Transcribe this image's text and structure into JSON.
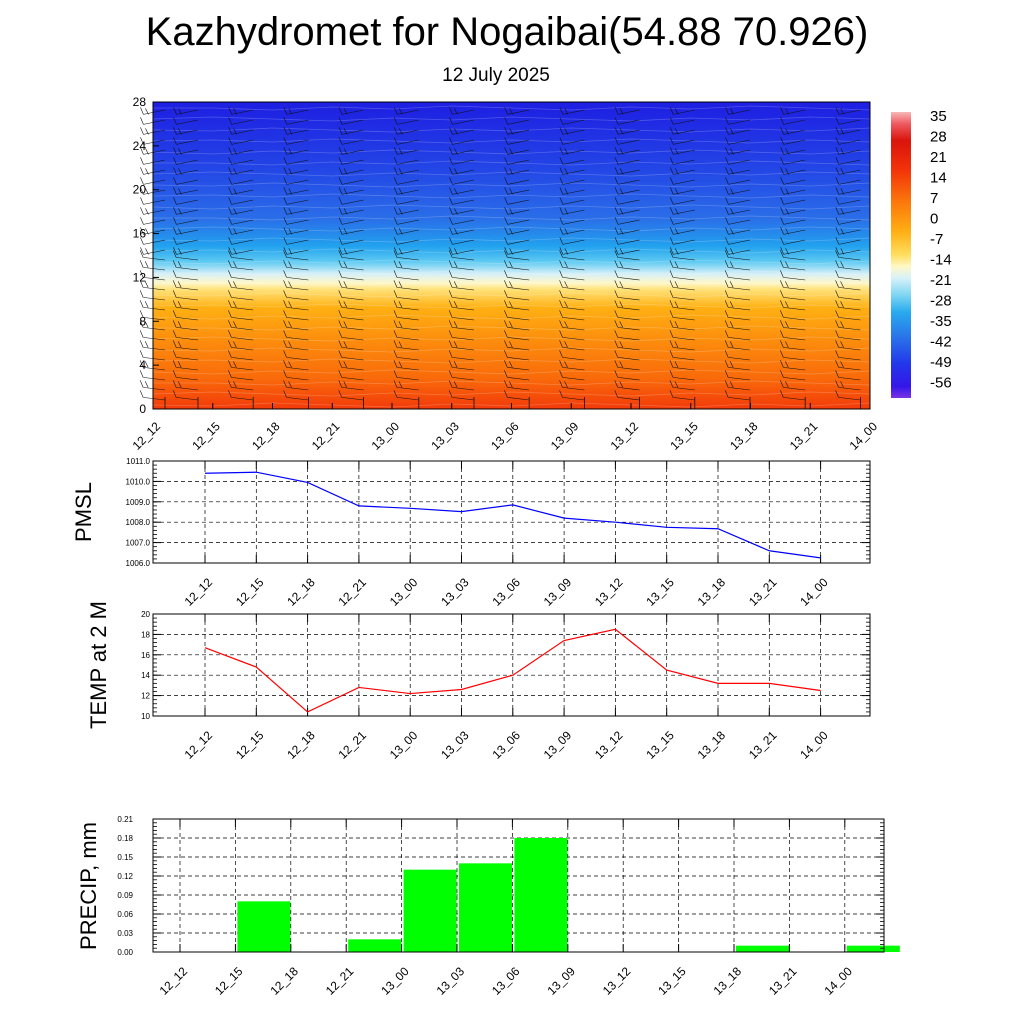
{
  "title": "Kazhydromet for Nogaibai(54.88 70.926)",
  "subtitle": "12 July 2025",
  "time_labels": [
    "12_12",
    "12_15",
    "12_18",
    "12_21",
    "13_00",
    "13_03",
    "13_06",
    "13_09",
    "13_12",
    "13_15",
    "13_18",
    "13_21",
    "14_00"
  ],
  "colors": {
    "pmsl_line": "#0000ff",
    "temp_line": "#ff0000",
    "precip_bar": "#00ff00",
    "grid": "#000000"
  },
  "chart_data": [
    {
      "type": "heatmap",
      "title": "",
      "xlabel": "",
      "ylabel": "",
      "x": [
        "12_12",
        "12_15",
        "12_18",
        "12_21",
        "13_00",
        "13_03",
        "13_06",
        "13_09",
        "13_12",
        "13_15",
        "13_18",
        "13_21",
        "14_00"
      ],
      "ylim": [
        0,
        28
      ],
      "yticks": [
        "0",
        "4",
        "8",
        "12",
        "16",
        "20",
        "24",
        "28"
      ],
      "colorbar_labels": [
        "35",
        "28",
        "21",
        "14",
        "7",
        "0",
        "-7",
        "-14",
        "-21",
        "-28",
        "-35",
        "-42",
        "-49",
        "-56"
      ],
      "colorbar_range": [
        -60,
        38
      ],
      "wind_barbs": true
    },
    {
      "type": "line",
      "ylabel": "PMSL",
      "x": [
        "12_12",
        "12_15",
        "12_18",
        "12_21",
        "13_00",
        "13_03",
        "13_06",
        "13_09",
        "13_12",
        "13_15",
        "13_18",
        "13_21",
        "14_00"
      ],
      "yticks": [
        "1006.0",
        "1007.0",
        "1008.0",
        "1009.0",
        "1010.0",
        "1011.0"
      ],
      "ylim": [
        1006.0,
        1011.0
      ],
      "series": [
        {
          "values": [
            1010.4,
            1010.45,
            1009.95,
            1008.8,
            1008.68,
            1008.52,
            1008.85,
            1008.2,
            1008.0,
            1007.75,
            1007.68,
            1006.6,
            1006.25
          ]
        }
      ]
    },
    {
      "type": "line",
      "ylabel": "TEMP at 2 M",
      "x": [
        "12_12",
        "12_15",
        "12_18",
        "12_21",
        "13_00",
        "13_03",
        "13_06",
        "13_09",
        "13_12",
        "13_15",
        "13_18",
        "13_21",
        "14_00"
      ],
      "yticks": [
        "10",
        "12",
        "14",
        "16",
        "18",
        "20"
      ],
      "ylim": [
        10,
        20
      ],
      "series": [
        {
          "values": [
            16.7,
            14.8,
            10.4,
            12.8,
            12.2,
            12.6,
            14.0,
            17.4,
            18.5,
            14.5,
            13.2,
            13.2,
            12.5
          ]
        }
      ]
    },
    {
      "type": "bar",
      "ylabel": "PRECIP, mm",
      "categories": [
        "12_12",
        "12_15",
        "12_18",
        "12_21",
        "13_00",
        "13_03",
        "13_06",
        "13_09",
        "13_12",
        "13_15",
        "13_18",
        "13_21",
        "14_00"
      ],
      "yticks": [
        "0.00",
        "0.03",
        "0.06",
        "0.09",
        "0.12",
        "0.15",
        "0.18",
        "0.21"
      ],
      "ylim": [
        0,
        0.21
      ],
      "values": [
        0.0,
        0.08,
        0.0,
        0.02,
        0.13,
        0.14,
        0.18,
        0.0,
        0.0,
        0.0,
        0.01,
        0.0,
        0.01
      ]
    }
  ]
}
